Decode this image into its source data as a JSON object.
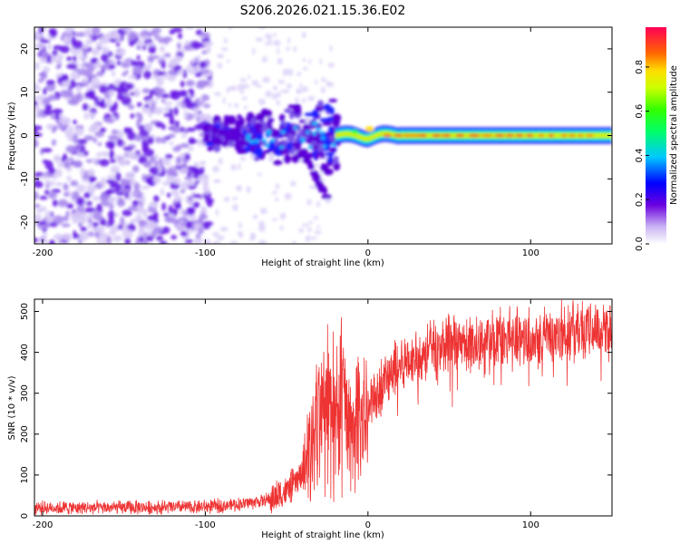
{
  "title": "S206.2026.021.15.36.E02",
  "spectrogram": {
    "type": "heatmap",
    "xlabel": "Height of straight line (km)",
    "ylabel": "Frequency (Hz)",
    "xlim": [
      -205,
      150
    ],
    "ylim": [
      -25,
      25
    ],
    "xticks": [
      -200,
      -100,
      0,
      100
    ],
    "yticks": [
      -20,
      -10,
      0,
      10,
      20
    ],
    "colorbar": {
      "label": "Normalized spectral amplitude",
      "range": [
        0,
        0.98
      ],
      "ticks": [
        0.0,
        0.2,
        0.4,
        0.6,
        0.8
      ]
    },
    "ridge": {
      "description_of_regions": "noise below -100 km, broadened signal -100 to -20 km, narrow line near 0 Hz above -20 km",
      "center_freq_hz": 0,
      "peak_amplitude": 0.95
    }
  },
  "snr": {
    "type": "line",
    "xlabel": "Height of straight line (km)",
    "ylabel": "SNR (10 * v/v)",
    "xlim": [
      -205,
      150
    ],
    "ylim": [
      0,
      530
    ],
    "xticks": [
      -200,
      -100,
      0,
      100
    ],
    "yticks": [
      0,
      100,
      200,
      300,
      400,
      500
    ],
    "color": "#ee3333",
    "envelope_x": [
      -205,
      -150,
      -100,
      -80,
      -60,
      -50,
      -40,
      -35,
      -30,
      -25,
      -20,
      -15,
      -10,
      -5,
      0,
      10,
      20,
      30,
      40,
      60,
      80,
      100,
      120,
      150
    ],
    "envelope_y": [
      20,
      20,
      22,
      28,
      40,
      60,
      100,
      160,
      220,
      260,
      240,
      280,
      180,
      220,
      260,
      330,
      370,
      390,
      410,
      420,
      430,
      440,
      450,
      460
    ]
  }
}
